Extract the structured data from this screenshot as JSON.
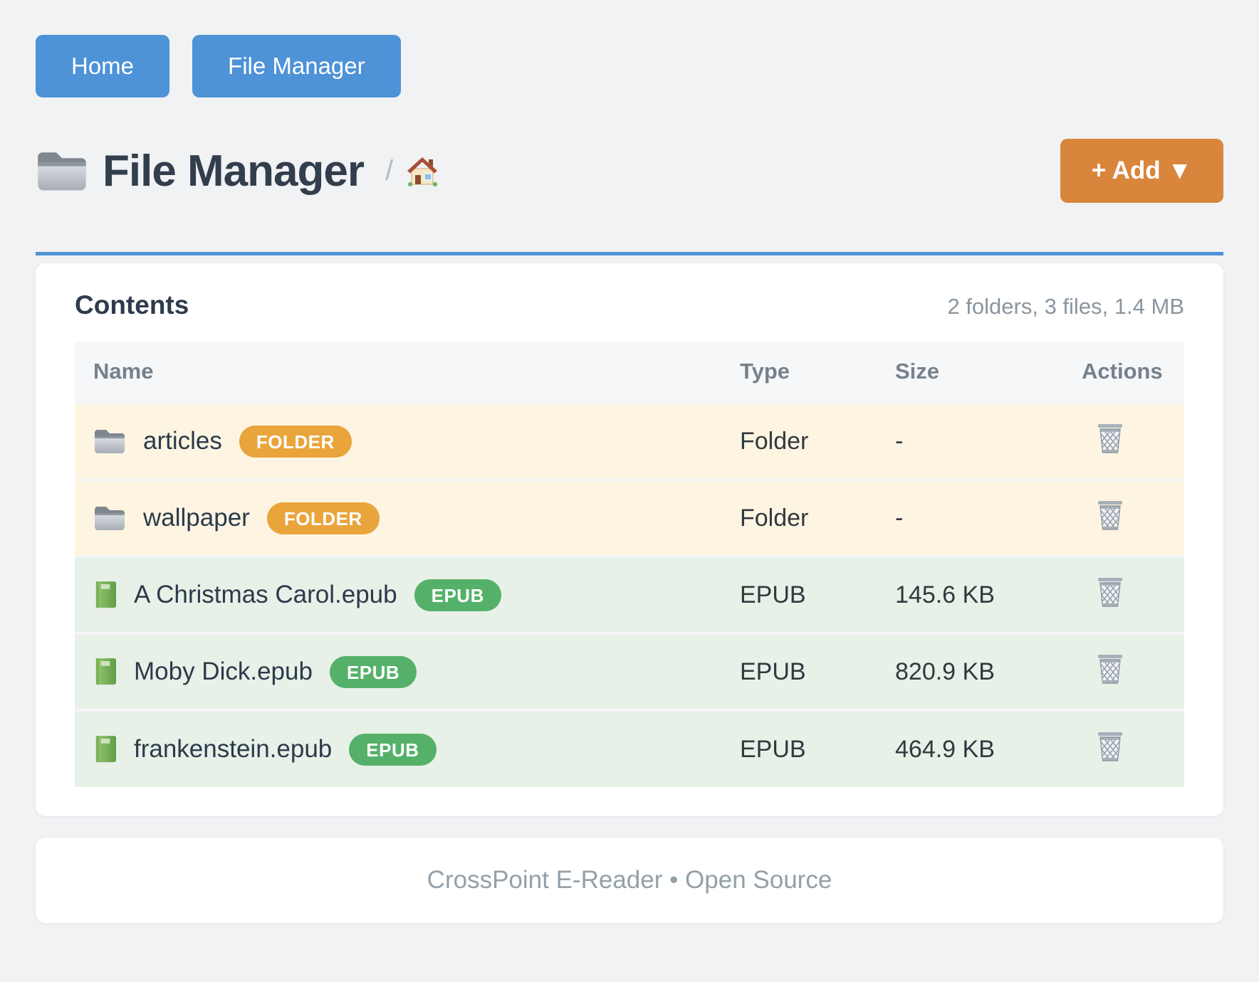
{
  "nav": {
    "home_label": "Home",
    "file_manager_label": "File Manager"
  },
  "header": {
    "title": "File Manager",
    "breadcrumb_separator": "/",
    "add_button_label": "+ Add ▼"
  },
  "icons": {
    "title_icon": "folder-icon",
    "breadcrumb_icon": "home-icon",
    "action_icon": "trash-icon"
  },
  "contents": {
    "title": "Contents",
    "stats": "2 folders, 3 files, 1.4 MB",
    "columns": [
      "Name",
      "Type",
      "Size",
      "Actions"
    ],
    "rows": [
      {
        "name": "articles",
        "badge": "FOLDER",
        "type": "Folder",
        "size": "-",
        "kind": "folder",
        "icon": "folder-icon"
      },
      {
        "name": "wallpaper",
        "badge": "FOLDER",
        "type": "Folder",
        "size": "-",
        "kind": "folder",
        "icon": "folder-icon"
      },
      {
        "name": "A Christmas Carol.epub",
        "badge": "EPUB",
        "type": "EPUB",
        "size": "145.6 KB",
        "kind": "epub",
        "icon": "book-icon"
      },
      {
        "name": "Moby Dick.epub",
        "badge": "EPUB",
        "type": "EPUB",
        "size": "820.9 KB",
        "kind": "epub",
        "icon": "book-icon"
      },
      {
        "name": "frankenstein.epub",
        "badge": "EPUB",
        "type": "EPUB",
        "size": "464.9 KB",
        "kind": "epub",
        "icon": "book-icon"
      }
    ]
  },
  "footer": {
    "text": "CrossPoint E-Reader • Open Source"
  },
  "colors": {
    "page_bg": "#f1f2f4",
    "accent_blue": "#4e92d7",
    "add_orange": "#d9853c",
    "title_color": "#333e4d",
    "muted_text": "#8a959e",
    "badge_folder": "#e9a43c",
    "badge_epub": "#55b169",
    "row_folder_bg": "#fdf5e1",
    "row_epub_bg": "#e8f1e8"
  }
}
